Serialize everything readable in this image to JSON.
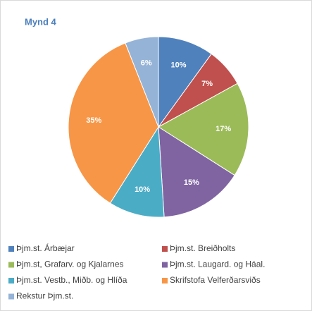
{
  "chart_data": {
    "type": "pie",
    "title": "Mynd 4",
    "categories": [
      "Þjm.st. Árbæjar",
      "Þjm.st. Breiðholts",
      "Þjm.st, Grafarv. og Kjalarnes",
      "Þjm.st. Laugard. og Háal.",
      "Þjm.st. Vestb., Miðb. og Hlíða",
      "Skrifstofa Velferðarsviðs",
      "Rekstur Þjm.st."
    ],
    "values": [
      10,
      7,
      17,
      15,
      10,
      35,
      6
    ],
    "value_labels": [
      "10%",
      "7%",
      "17%",
      "15%",
      "10%",
      "35%",
      "6%"
    ],
    "colors": [
      "#4f81bd",
      "#c0504d",
      "#9bbb59",
      "#8064a2",
      "#4bacc6",
      "#f79646",
      "#95b3d7"
    ],
    "legend": "bottom"
  }
}
